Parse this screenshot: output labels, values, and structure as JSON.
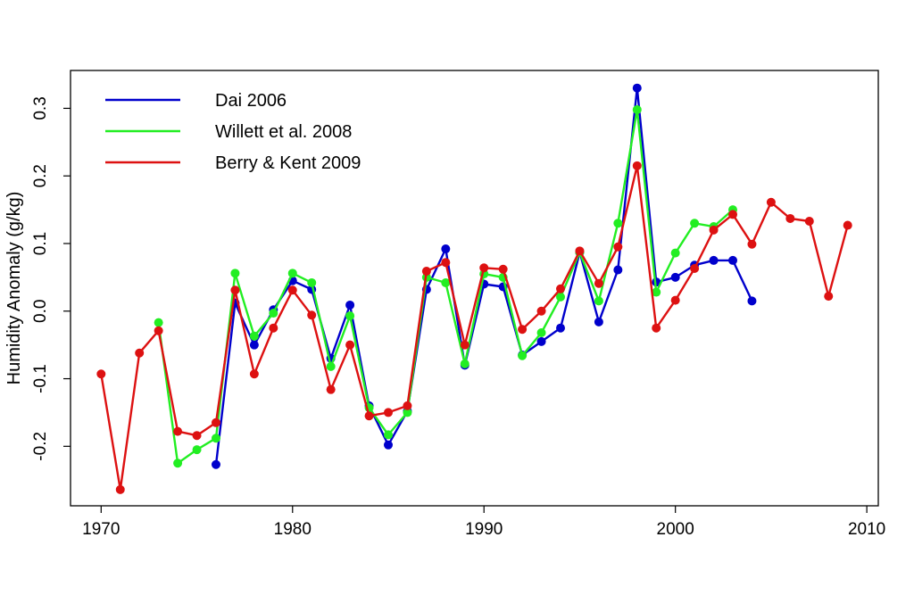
{
  "chart_data": {
    "type": "line",
    "xlabel": "",
    "ylabel": "Humidity Anomaly (g/kg)",
    "xlim": [
      1968.4,
      2010.6
    ],
    "ylim": [
      -0.288,
      0.356
    ],
    "x_ticks": [
      1970,
      1980,
      1990,
      2000,
      2010
    ],
    "y_ticks": [
      -0.2,
      -0.1,
      0.0,
      0.1,
      0.2,
      0.3
    ],
    "y_tick_labels": [
      "-0.2",
      "-0.1",
      "0.0",
      "0.1",
      "0.2",
      "0.3"
    ],
    "grid": false,
    "legend_position": "top-left",
    "series": [
      {
        "name": "Dai 2006",
        "color": "#0000cc",
        "x": [
          1976,
          1977,
          1978,
          1979,
          1980,
          1981,
          1982,
          1983,
          1984,
          1985,
          1986,
          1987,
          1988,
          1989,
          1990,
          1991,
          1992,
          1993,
          1994,
          1995,
          1996,
          1997,
          1998,
          1999,
          2000,
          2001,
          2002,
          2003,
          2004
        ],
        "values": [
          -0.227,
          0.012,
          -0.05,
          0.002,
          0.045,
          0.032,
          -0.07,
          0.009,
          -0.14,
          -0.198,
          -0.148,
          0.032,
          0.092,
          -0.08,
          0.04,
          0.036,
          -0.065,
          -0.045,
          -0.025,
          0.087,
          -0.016,
          0.061,
          0.33,
          0.043,
          0.05,
          0.068,
          0.075,
          0.075,
          0.015
        ]
      },
      {
        "name": "Willett et al. 2008",
        "color": "#22ee22",
        "x": [
          1973,
          1974,
          1975,
          1976,
          1977,
          1978,
          1979,
          1980,
          1981,
          1982,
          1983,
          1984,
          1985,
          1986,
          1987,
          1988,
          1989,
          1990,
          1991,
          1992,
          1993,
          1994,
          1995,
          1996,
          1997,
          1998,
          1999,
          2000,
          2001,
          2002,
          2003
        ],
        "values": [
          -0.017,
          -0.225,
          -0.205,
          -0.188,
          0.056,
          -0.037,
          -0.003,
          0.056,
          0.042,
          -0.082,
          -0.007,
          -0.143,
          -0.183,
          -0.15,
          0.05,
          0.042,
          -0.078,
          0.055,
          0.05,
          -0.066,
          -0.032,
          0.021,
          0.087,
          0.015,
          0.13,
          0.298,
          0.028,
          0.086,
          0.13,
          0.125,
          0.15
        ]
      },
      {
        "name": "Berry & Kent 2009",
        "color": "#dd1111",
        "x": [
          1970,
          1971,
          1972,
          1973,
          1974,
          1975,
          1976,
          1977,
          1978,
          1979,
          1980,
          1981,
          1982,
          1983,
          1984,
          1985,
          1986,
          1987,
          1988,
          1989,
          1990,
          1991,
          1992,
          1993,
          1994,
          1995,
          1996,
          1997,
          1998,
          1999,
          2000,
          2001,
          2002,
          2003,
          2004,
          2005,
          2006,
          2007,
          2008,
          2009
        ],
        "values": [
          -0.093,
          -0.264,
          -0.062,
          -0.029,
          -0.178,
          -0.184,
          -0.165,
          0.031,
          -0.093,
          -0.025,
          0.031,
          -0.006,
          -0.116,
          -0.05,
          -0.155,
          -0.15,
          -0.14,
          0.059,
          0.072,
          -0.05,
          0.064,
          0.062,
          -0.027,
          0.0,
          0.033,
          0.089,
          0.041,
          0.095,
          0.215,
          -0.025,
          0.016,
          0.063,
          0.12,
          0.143,
          0.099,
          0.161,
          0.137,
          0.133,
          0.022,
          0.127
        ]
      }
    ]
  }
}
